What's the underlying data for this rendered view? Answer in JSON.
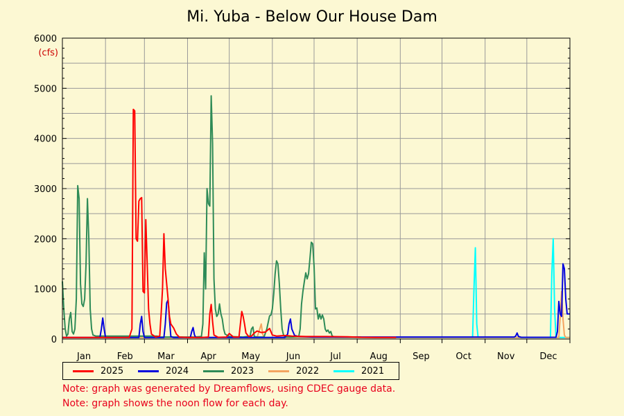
{
  "chart_data": {
    "type": "line",
    "title": "Mi. Yuba - Below Our House Dam",
    "unit_label": "(cfs)",
    "ylim": [
      0,
      6000
    ],
    "y_ticks": [
      0,
      1000,
      2000,
      3000,
      4000,
      5000,
      6000
    ],
    "x_domain_days": [
      0,
      365
    ],
    "month_labels": [
      "Jan",
      "Feb",
      "Mar",
      "Apr",
      "May",
      "Jun",
      "Jul",
      "Aug",
      "Sep",
      "Oct",
      "Nov",
      "Dec"
    ],
    "grid": true,
    "legend_position": "bottom",
    "series": [
      {
        "name": "2025",
        "color": "#ff0000",
        "points": [
          [
            0,
            30
          ],
          [
            20,
            30
          ],
          [
            40,
            30
          ],
          [
            48,
            30
          ],
          [
            50,
            200
          ],
          [
            51,
            4580
          ],
          [
            52,
            4550
          ],
          [
            53,
            2000
          ],
          [
            54,
            1950
          ],
          [
            55,
            2750
          ],
          [
            56,
            2800
          ],
          [
            57,
            2820
          ],
          [
            58,
            950
          ],
          [
            59,
            920
          ],
          [
            60,
            2380
          ],
          [
            61,
            1500
          ],
          [
            62,
            600
          ],
          [
            63,
            300
          ],
          [
            64,
            100
          ],
          [
            67,
            40
          ],
          [
            70,
            60
          ],
          [
            71,
            500
          ],
          [
            72,
            1000
          ],
          [
            73,
            2100
          ],
          [
            74,
            1400
          ],
          [
            76,
            800
          ],
          [
            77,
            450
          ],
          [
            78,
            300
          ],
          [
            79,
            260
          ],
          [
            80,
            220
          ],
          [
            82,
            100
          ],
          [
            84,
            40
          ],
          [
            90,
            30
          ],
          [
            100,
            30
          ],
          [
            105,
            40
          ],
          [
            106,
            500
          ],
          [
            107,
            690
          ],
          [
            108,
            350
          ],
          [
            109,
            80
          ],
          [
            112,
            35
          ],
          [
            118,
            40
          ],
          [
            120,
            110
          ],
          [
            123,
            40
          ],
          [
            127,
            40
          ],
          [
            128,
            300
          ],
          [
            129,
            550
          ],
          [
            130,
            450
          ],
          [
            131,
            300
          ],
          [
            132,
            120
          ],
          [
            134,
            50
          ],
          [
            136,
            60
          ],
          [
            138,
            120
          ],
          [
            140,
            160
          ],
          [
            143,
            130
          ],
          [
            146,
            140
          ],
          [
            149,
            210
          ],
          [
            151,
            80
          ],
          [
            154,
            60
          ],
          [
            160,
            70
          ],
          [
            165,
            60
          ],
          [
            175,
            50
          ],
          [
            190,
            50
          ],
          [
            205,
            45
          ],
          [
            215,
            35
          ],
          [
            225,
            30
          ],
          [
            240,
            30
          ]
        ]
      },
      {
        "name": "2024",
        "color": "#0000dd",
        "points": [
          [
            0,
            30
          ],
          [
            20,
            30
          ],
          [
            27,
            30
          ],
          [
            28,
            200
          ],
          [
            29,
            420
          ],
          [
            30,
            200
          ],
          [
            31,
            30
          ],
          [
            50,
            30
          ],
          [
            55,
            30
          ],
          [
            56,
            300
          ],
          [
            57,
            450
          ],
          [
            58,
            150
          ],
          [
            59,
            30
          ],
          [
            70,
            30
          ],
          [
            73,
            30
          ],
          [
            74,
            300
          ],
          [
            75,
            720
          ],
          [
            76,
            780
          ],
          [
            77,
            400
          ],
          [
            78,
            50
          ],
          [
            80,
            30
          ],
          [
            90,
            30
          ],
          [
            92,
            30
          ],
          [
            93,
            150
          ],
          [
            94,
            230
          ],
          [
            95,
            80
          ],
          [
            96,
            30
          ],
          [
            110,
            30
          ],
          [
            120,
            30
          ],
          [
            135,
            30
          ],
          [
            150,
            30
          ],
          [
            160,
            30
          ],
          [
            162,
            100
          ],
          [
            163,
            300
          ],
          [
            164,
            400
          ],
          [
            165,
            200
          ],
          [
            167,
            70
          ],
          [
            170,
            50
          ],
          [
            180,
            40
          ],
          [
            200,
            40
          ],
          [
            240,
            40
          ],
          [
            270,
            40
          ],
          [
            300,
            40
          ],
          [
            325,
            40
          ],
          [
            326,
            60
          ],
          [
            327,
            120
          ],
          [
            328,
            50
          ],
          [
            330,
            35
          ],
          [
            345,
            35
          ],
          [
            355,
            35
          ],
          [
            356,
            150
          ],
          [
            357,
            750
          ],
          [
            358,
            500
          ],
          [
            359,
            450
          ],
          [
            360,
            1500
          ],
          [
            361,
            1400
          ],
          [
            362,
            800
          ],
          [
            363,
            500
          ],
          [
            365,
            500
          ]
        ]
      },
      {
        "name": "2023",
        "color": "#2e8b57",
        "points": [
          [
            0,
            1150
          ],
          [
            1,
            600
          ],
          [
            2,
            200
          ],
          [
            3,
            60
          ],
          [
            4,
            100
          ],
          [
            5,
            400
          ],
          [
            6,
            530
          ],
          [
            7,
            150
          ],
          [
            8,
            100
          ],
          [
            9,
            200
          ],
          [
            10,
            800
          ],
          [
            11,
            3060
          ],
          [
            12,
            2800
          ],
          [
            13,
            1100
          ],
          [
            14,
            700
          ],
          [
            15,
            650
          ],
          [
            16,
            800
          ],
          [
            17,
            1500
          ],
          [
            18,
            2800
          ],
          [
            19,
            2000
          ],
          [
            20,
            600
          ],
          [
            21,
            200
          ],
          [
            22,
            80
          ],
          [
            24,
            60
          ],
          [
            30,
            60
          ],
          [
            50,
            60
          ],
          [
            60,
            60
          ],
          [
            68,
            60
          ],
          [
            70,
            40
          ],
          [
            75,
            40
          ],
          [
            82,
            40
          ],
          [
            85,
            40
          ],
          [
            92,
            40
          ],
          [
            95,
            40
          ],
          [
            100,
            50
          ],
          [
            101,
            300
          ],
          [
            102,
            1720
          ],
          [
            103,
            1000
          ],
          [
            104,
            3000
          ],
          [
            105,
            2700
          ],
          [
            106,
            2650
          ],
          [
            107,
            4850
          ],
          [
            108,
            3900
          ],
          [
            109,
            1200
          ],
          [
            110,
            600
          ],
          [
            111,
            450
          ],
          [
            112,
            500
          ],
          [
            113,
            700
          ],
          [
            114,
            500
          ],
          [
            115,
            400
          ],
          [
            116,
            200
          ],
          [
            117,
            100
          ],
          [
            120,
            50
          ],
          [
            130,
            40
          ],
          [
            135,
            60
          ],
          [
            136,
            200
          ],
          [
            137,
            240
          ],
          [
            138,
            50
          ],
          [
            140,
            40
          ],
          [
            145,
            40
          ],
          [
            147,
            200
          ],
          [
            149,
            460
          ],
          [
            150,
            480
          ],
          [
            151,
            600
          ],
          [
            152,
            900
          ],
          [
            153,
            1300
          ],
          [
            154,
            1560
          ],
          [
            155,
            1500
          ],
          [
            156,
            1100
          ],
          [
            157,
            600
          ],
          [
            158,
            200
          ],
          [
            159,
            80
          ],
          [
            160,
            40
          ],
          [
            165,
            40
          ],
          [
            170,
            50
          ],
          [
            171,
            200
          ],
          [
            172,
            700
          ],
          [
            173,
            950
          ],
          [
            174,
            1150
          ],
          [
            175,
            1320
          ],
          [
            176,
            1200
          ],
          [
            177,
            1300
          ],
          [
            178,
            1600
          ],
          [
            179,
            1930
          ],
          [
            180,
            1900
          ],
          [
            181,
            1450
          ],
          [
            182,
            600
          ],
          [
            183,
            620
          ],
          [
            184,
            400
          ],
          [
            185,
            500
          ],
          [
            186,
            400
          ],
          [
            187,
            480
          ],
          [
            188,
            400
          ],
          [
            189,
            200
          ],
          [
            190,
            150
          ],
          [
            191,
            180
          ],
          [
            192,
            120
          ],
          [
            193,
            150
          ],
          [
            194,
            60
          ],
          [
            196,
            40
          ],
          [
            200,
            40
          ],
          [
            210,
            40
          ],
          [
            215,
            40
          ]
        ]
      },
      {
        "name": "2022",
        "color": "#f4a460",
        "points": [
          [
            0,
            30
          ],
          [
            50,
            30
          ],
          [
            100,
            30
          ],
          [
            140,
            30
          ],
          [
            143,
            300
          ],
          [
            144,
            100
          ],
          [
            145,
            30
          ],
          [
            200,
            30
          ],
          [
            300,
            30
          ],
          [
            350,
            30
          ],
          [
            357,
            30
          ],
          [
            358,
            450
          ],
          [
            359,
            950
          ],
          [
            360,
            400
          ],
          [
            361,
            80
          ],
          [
            362,
            30
          ],
          [
            365,
            30
          ]
        ]
      },
      {
        "name": "2021",
        "color": "#00ffff",
        "points": [
          [
            0,
            30
          ],
          [
            100,
            30
          ],
          [
            200,
            30
          ],
          [
            295,
            30
          ],
          [
            296,
            1000
          ],
          [
            297,
            1820
          ],
          [
            298,
            300
          ],
          [
            299,
            30
          ],
          [
            300,
            30
          ],
          [
            351,
            30
          ],
          [
            352,
            1300
          ],
          [
            353,
            2000
          ],
          [
            354,
            600
          ],
          [
            355,
            30
          ],
          [
            365,
            30
          ]
        ]
      }
    ]
  },
  "notes": [
    "Note: graph was generated by Dreamflows, using CDEC gauge data.",
    "Note: graph shows the noon flow for each day."
  ]
}
